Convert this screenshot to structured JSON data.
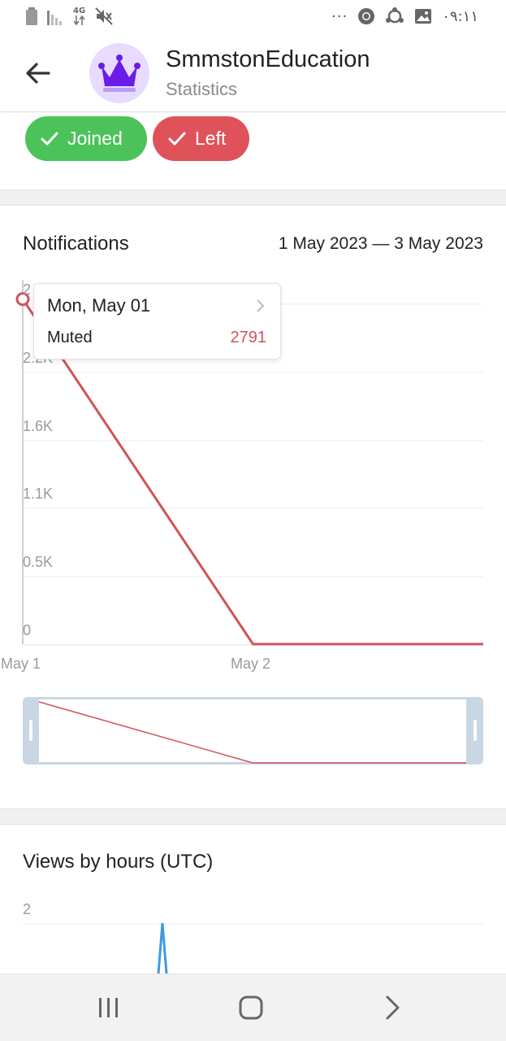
{
  "status_bar": {
    "network": "4G",
    "time": "٠٩:١١",
    "dots": "···"
  },
  "header": {
    "title": "SmmstonEducation",
    "subtitle": "Statistics"
  },
  "filters": {
    "joined_label": "Joined",
    "left_label": "Left",
    "joined_color": "#4cc35a",
    "left_color": "#e0525a"
  },
  "notifications": {
    "title": "Notifications",
    "date_range": "1 May 2023 — 3 May 2023",
    "tooltip": {
      "date": "Mon, May 01",
      "series_label": "Muted",
      "value": "2791"
    },
    "y_ticks": [
      "2",
      "2.2K",
      "1.6K",
      "1.1K",
      "0.5K",
      "0"
    ],
    "x_ticks": [
      "May 1",
      "May 2"
    ]
  },
  "views_by_hours": {
    "title": "Views by hours (UTC)",
    "y_ticks": [
      "2"
    ]
  },
  "chart_data": [
    {
      "type": "line",
      "title": "Notifications",
      "x": [
        "May 1",
        "May 2",
        "May 3"
      ],
      "series": [
        {
          "name": "Muted",
          "color": "#d1525b",
          "values": [
            2791,
            0,
            0
          ]
        }
      ],
      "x_ticks": [
        "May 1",
        "May 2"
      ],
      "y_ticks": [
        "0",
        "0.5K",
        "1.1K",
        "1.6K",
        "2.2K"
      ],
      "ylim": [
        0,
        2750
      ],
      "grid": true
    }
  ]
}
